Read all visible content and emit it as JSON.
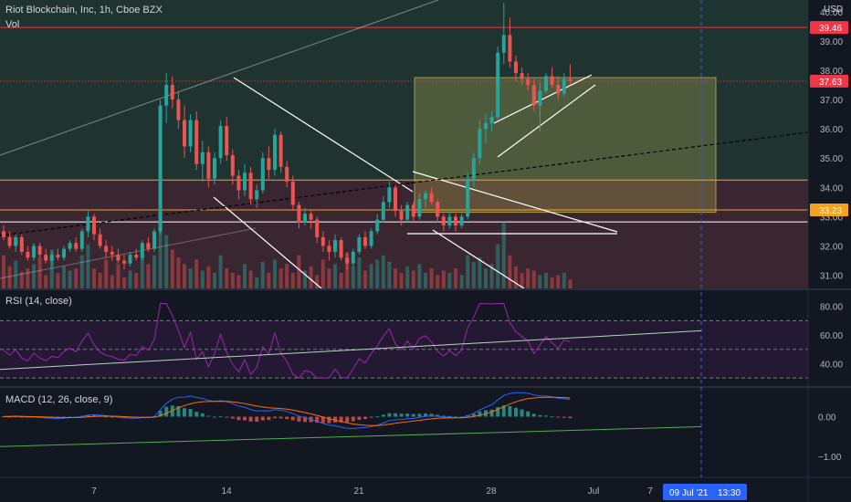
{
  "header": {
    "symbol": "Riot Blockchain, Inc, 1h, Cboe BZX",
    "vol_label": "Vol",
    "currency": "USD"
  },
  "rsi": {
    "label": "RSI (14, close)"
  },
  "macd": {
    "label": "MACD (12, 26, close, 9)"
  },
  "crosshair": {
    "date": "09 Jul '21",
    "time": "13:30"
  },
  "colors": {
    "background": "#131722",
    "up": "#26a69a",
    "down": "#ef5350",
    "rsi_line": "#9c27b0",
    "resistance": "#f23645",
    "support": "#f7a21b",
    "target_box": "#c8c35a",
    "trend": "#ffffff",
    "price_tag": "#f23645",
    "crosshair": "#2962ff"
  },
  "chart_data": [
    {
      "type": "candlestick",
      "title": "Riot Blockchain, Inc, 1h, Cboe BZX",
      "x_ticks": [
        "7",
        "14",
        "21",
        "28",
        "Jul",
        "7"
      ],
      "y_ticks": [
        31.0,
        32.0,
        33.0,
        34.0,
        35.0,
        36.0,
        37.0,
        38.0,
        39.0,
        40.0
      ],
      "ylim": [
        30.55,
        40.4
      ],
      "price_labels": [
        {
          "value": 39.46,
          "color": "#f23645",
          "text": "39.46"
        },
        {
          "value": 37.63,
          "color": "#f23645",
          "text": "37.63"
        },
        {
          "value": 33.23,
          "color": "#f7a21b",
          "text": "33.23"
        }
      ],
      "horizontal_levels": [
        39.46,
        34.25,
        33.23,
        32.82
      ],
      "candles": [
        [
          32.5,
          32.7,
          32.2,
          32.3
        ],
        [
          32.3,
          32.5,
          31.9,
          32.0
        ],
        [
          32.0,
          32.4,
          31.8,
          32.3
        ],
        [
          32.3,
          32.4,
          31.7,
          31.8
        ],
        [
          31.8,
          32.0,
          31.5,
          31.6
        ],
        [
          31.6,
          32.1,
          31.5,
          32.0
        ],
        [
          32.0,
          32.1,
          31.6,
          31.7
        ],
        [
          31.7,
          31.9,
          31.4,
          31.5
        ],
        [
          31.5,
          31.8,
          31.3,
          31.7
        ],
        [
          31.7,
          31.9,
          31.5,
          31.6
        ],
        [
          31.6,
          32.0,
          31.5,
          31.9
        ],
        [
          31.9,
          32.2,
          31.8,
          32.1
        ],
        [
          32.1,
          32.3,
          31.8,
          31.9
        ],
        [
          31.9,
          32.6,
          31.8,
          32.5
        ],
        [
          32.5,
          33.2,
          32.3,
          33.0
        ],
        [
          33.0,
          33.1,
          32.2,
          32.4
        ],
        [
          32.4,
          32.6,
          31.9,
          32.0
        ],
        [
          32.0,
          32.2,
          31.6,
          31.8
        ],
        [
          31.8,
          32.0,
          31.5,
          31.7
        ],
        [
          31.7,
          31.9,
          31.4,
          31.5
        ],
        [
          31.5,
          31.7,
          31.2,
          31.4
        ],
        [
          31.4,
          31.8,
          31.3,
          31.7
        ],
        [
          31.7,
          31.9,
          31.5,
          31.6
        ],
        [
          31.6,
          32.2,
          31.5,
          32.1
        ],
        [
          32.1,
          32.3,
          31.8,
          31.9
        ],
        [
          31.9,
          32.6,
          31.8,
          32.5
        ],
        [
          32.5,
          37.0,
          32.4,
          36.8
        ],
        [
          36.8,
          37.9,
          36.2,
          37.5
        ],
        [
          37.5,
          37.8,
          36.7,
          37.0
        ],
        [
          37.0,
          37.3,
          36.0,
          36.3
        ],
        [
          36.3,
          36.8,
          35.0,
          35.4
        ],
        [
          35.4,
          36.5,
          35.2,
          36.3
        ],
        [
          36.3,
          36.6,
          34.6,
          34.8
        ],
        [
          34.8,
          35.6,
          34.2,
          35.2
        ],
        [
          35.2,
          35.4,
          34.0,
          34.3
        ],
        [
          34.3,
          35.2,
          34.1,
          35.0
        ],
        [
          35.0,
          36.3,
          34.8,
          36.1
        ],
        [
          36.1,
          36.4,
          34.9,
          35.1
        ],
        [
          35.1,
          35.3,
          34.1,
          34.4
        ],
        [
          34.4,
          34.6,
          33.6,
          33.9
        ],
        [
          33.9,
          34.8,
          33.7,
          34.5
        ],
        [
          34.5,
          34.7,
          33.4,
          33.6
        ],
        [
          33.6,
          34.1,
          33.3,
          33.9
        ],
        [
          33.9,
          35.2,
          33.8,
          35.0
        ],
        [
          35.0,
          35.4,
          34.3,
          34.6
        ],
        [
          34.6,
          36.0,
          34.4,
          35.8
        ],
        [
          35.8,
          35.9,
          34.5,
          34.7
        ],
        [
          34.7,
          34.9,
          34.0,
          34.2
        ],
        [
          34.2,
          34.4,
          33.2,
          33.4
        ],
        [
          33.4,
          33.5,
          32.6,
          32.8
        ],
        [
          32.8,
          33.3,
          32.7,
          33.1
        ],
        [
          33.1,
          33.2,
          32.6,
          32.9
        ],
        [
          32.9,
          33.0,
          32.1,
          32.3
        ],
        [
          32.3,
          32.5,
          31.8,
          32.0
        ],
        [
          32.0,
          32.2,
          31.5,
          31.8
        ],
        [
          31.8,
          32.4,
          31.6,
          32.2
        ],
        [
          32.2,
          32.3,
          31.5,
          31.6
        ],
        [
          31.6,
          31.8,
          31.2,
          31.4
        ],
        [
          31.4,
          31.9,
          31.3,
          31.8
        ],
        [
          31.8,
          32.4,
          31.7,
          32.3
        ],
        [
          32.3,
          32.5,
          31.9,
          32.0
        ],
        [
          32.0,
          32.6,
          31.9,
          32.5
        ],
        [
          32.5,
          33.1,
          32.4,
          32.9
        ],
        [
          32.9,
          33.7,
          32.8,
          33.5
        ],
        [
          33.5,
          34.2,
          33.3,
          34.0
        ],
        [
          34.0,
          34.1,
          33.0,
          33.2
        ],
        [
          33.2,
          33.4,
          32.7,
          32.9
        ],
        [
          32.9,
          33.5,
          32.8,
          33.4
        ],
        [
          33.4,
          33.5,
          32.8,
          33.0
        ],
        [
          33.0,
          33.8,
          32.9,
          33.6
        ],
        [
          33.6,
          33.9,
          33.3,
          33.8
        ],
        [
          33.8,
          34.0,
          33.4,
          33.5
        ],
        [
          33.5,
          33.6,
          32.8,
          33.0
        ],
        [
          33.0,
          33.1,
          32.5,
          32.7
        ],
        [
          32.7,
          33.2,
          32.6,
          33.0
        ],
        [
          33.0,
          33.1,
          32.5,
          32.7
        ],
        [
          32.7,
          33.1,
          32.6,
          33.0
        ],
        [
          33.0,
          34.5,
          32.9,
          34.3
        ],
        [
          34.3,
          35.2,
          34.0,
          35.0
        ],
        [
          35.0,
          36.3,
          34.8,
          36.0
        ],
        [
          36.0,
          36.5,
          35.5,
          36.2
        ],
        [
          36.2,
          36.6,
          35.9,
          36.4
        ],
        [
          36.4,
          38.8,
          36.3,
          38.6
        ],
        [
          38.6,
          40.3,
          38.2,
          39.2
        ],
        [
          39.2,
          39.8,
          38.1,
          38.3
        ],
        [
          38.3,
          38.5,
          37.6,
          37.9
        ],
        [
          37.9,
          38.1,
          37.5,
          37.7
        ],
        [
          37.7,
          37.9,
          37.3,
          37.5
        ],
        [
          37.5,
          37.7,
          36.6,
          36.8
        ],
        [
          36.8,
          37.6,
          35.9,
          37.3
        ],
        [
          37.3,
          37.9,
          37.2,
          37.8
        ],
        [
          37.8,
          38.1,
          37.4,
          37.5
        ],
        [
          37.5,
          37.8,
          37.0,
          37.2
        ],
        [
          37.2,
          37.9,
          37.1,
          37.7
        ],
        [
          37.7,
          38.2,
          37.5,
          37.63
        ]
      ],
      "volumes": [
        30,
        20,
        25,
        15,
        18,
        22,
        28,
        12,
        35,
        14,
        20,
        16,
        18,
        30,
        40,
        18,
        14,
        26,
        12,
        22,
        10,
        16,
        14,
        28,
        22,
        30,
        70,
        48,
        35,
        28,
        22,
        18,
        26,
        16,
        20,
        14,
        30,
        18,
        14,
        12,
        22,
        16,
        10,
        24,
        14,
        26,
        18,
        22,
        14,
        30,
        16,
        20,
        12,
        26,
        18,
        22,
        14,
        32,
        20,
        28,
        16,
        22,
        26,
        30,
        24,
        18,
        14,
        20,
        16,
        22,
        14,
        18,
        12,
        16,
        14,
        18,
        12,
        30,
        24,
        28,
        18,
        22,
        40,
        60,
        30,
        20,
        14,
        18,
        16,
        12,
        14,
        10,
        12,
        14,
        8
      ],
      "series": [
        {
          "name": "RSI (14, close)",
          "ylim": [
            25,
            90
          ],
          "y_ticks": [
            40,
            60,
            80
          ],
          "bands": [
            30,
            50,
            70
          ]
        },
        {
          "name": "MACD (12, 26, close, 9)",
          "ylim": [
            -1.5,
            0.7
          ],
          "y_ticks": [
            -1.0,
            0.0
          ]
        }
      ]
    }
  ]
}
